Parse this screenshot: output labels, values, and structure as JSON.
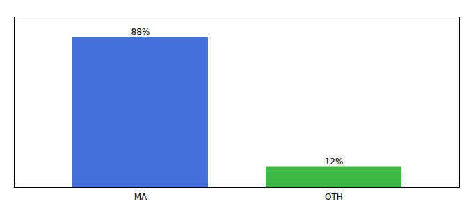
{
  "chart_data": {
    "type": "bar",
    "categories": [
      "MA",
      "OTH"
    ],
    "values": [
      88,
      12
    ],
    "value_labels": [
      "88%",
      "12%"
    ],
    "colors": [
      "#4472d9",
      "#3cb843"
    ],
    "ylim": [
      0,
      100
    ],
    "data_labels": true,
    "tick_labels": "x",
    "grid": false
  }
}
